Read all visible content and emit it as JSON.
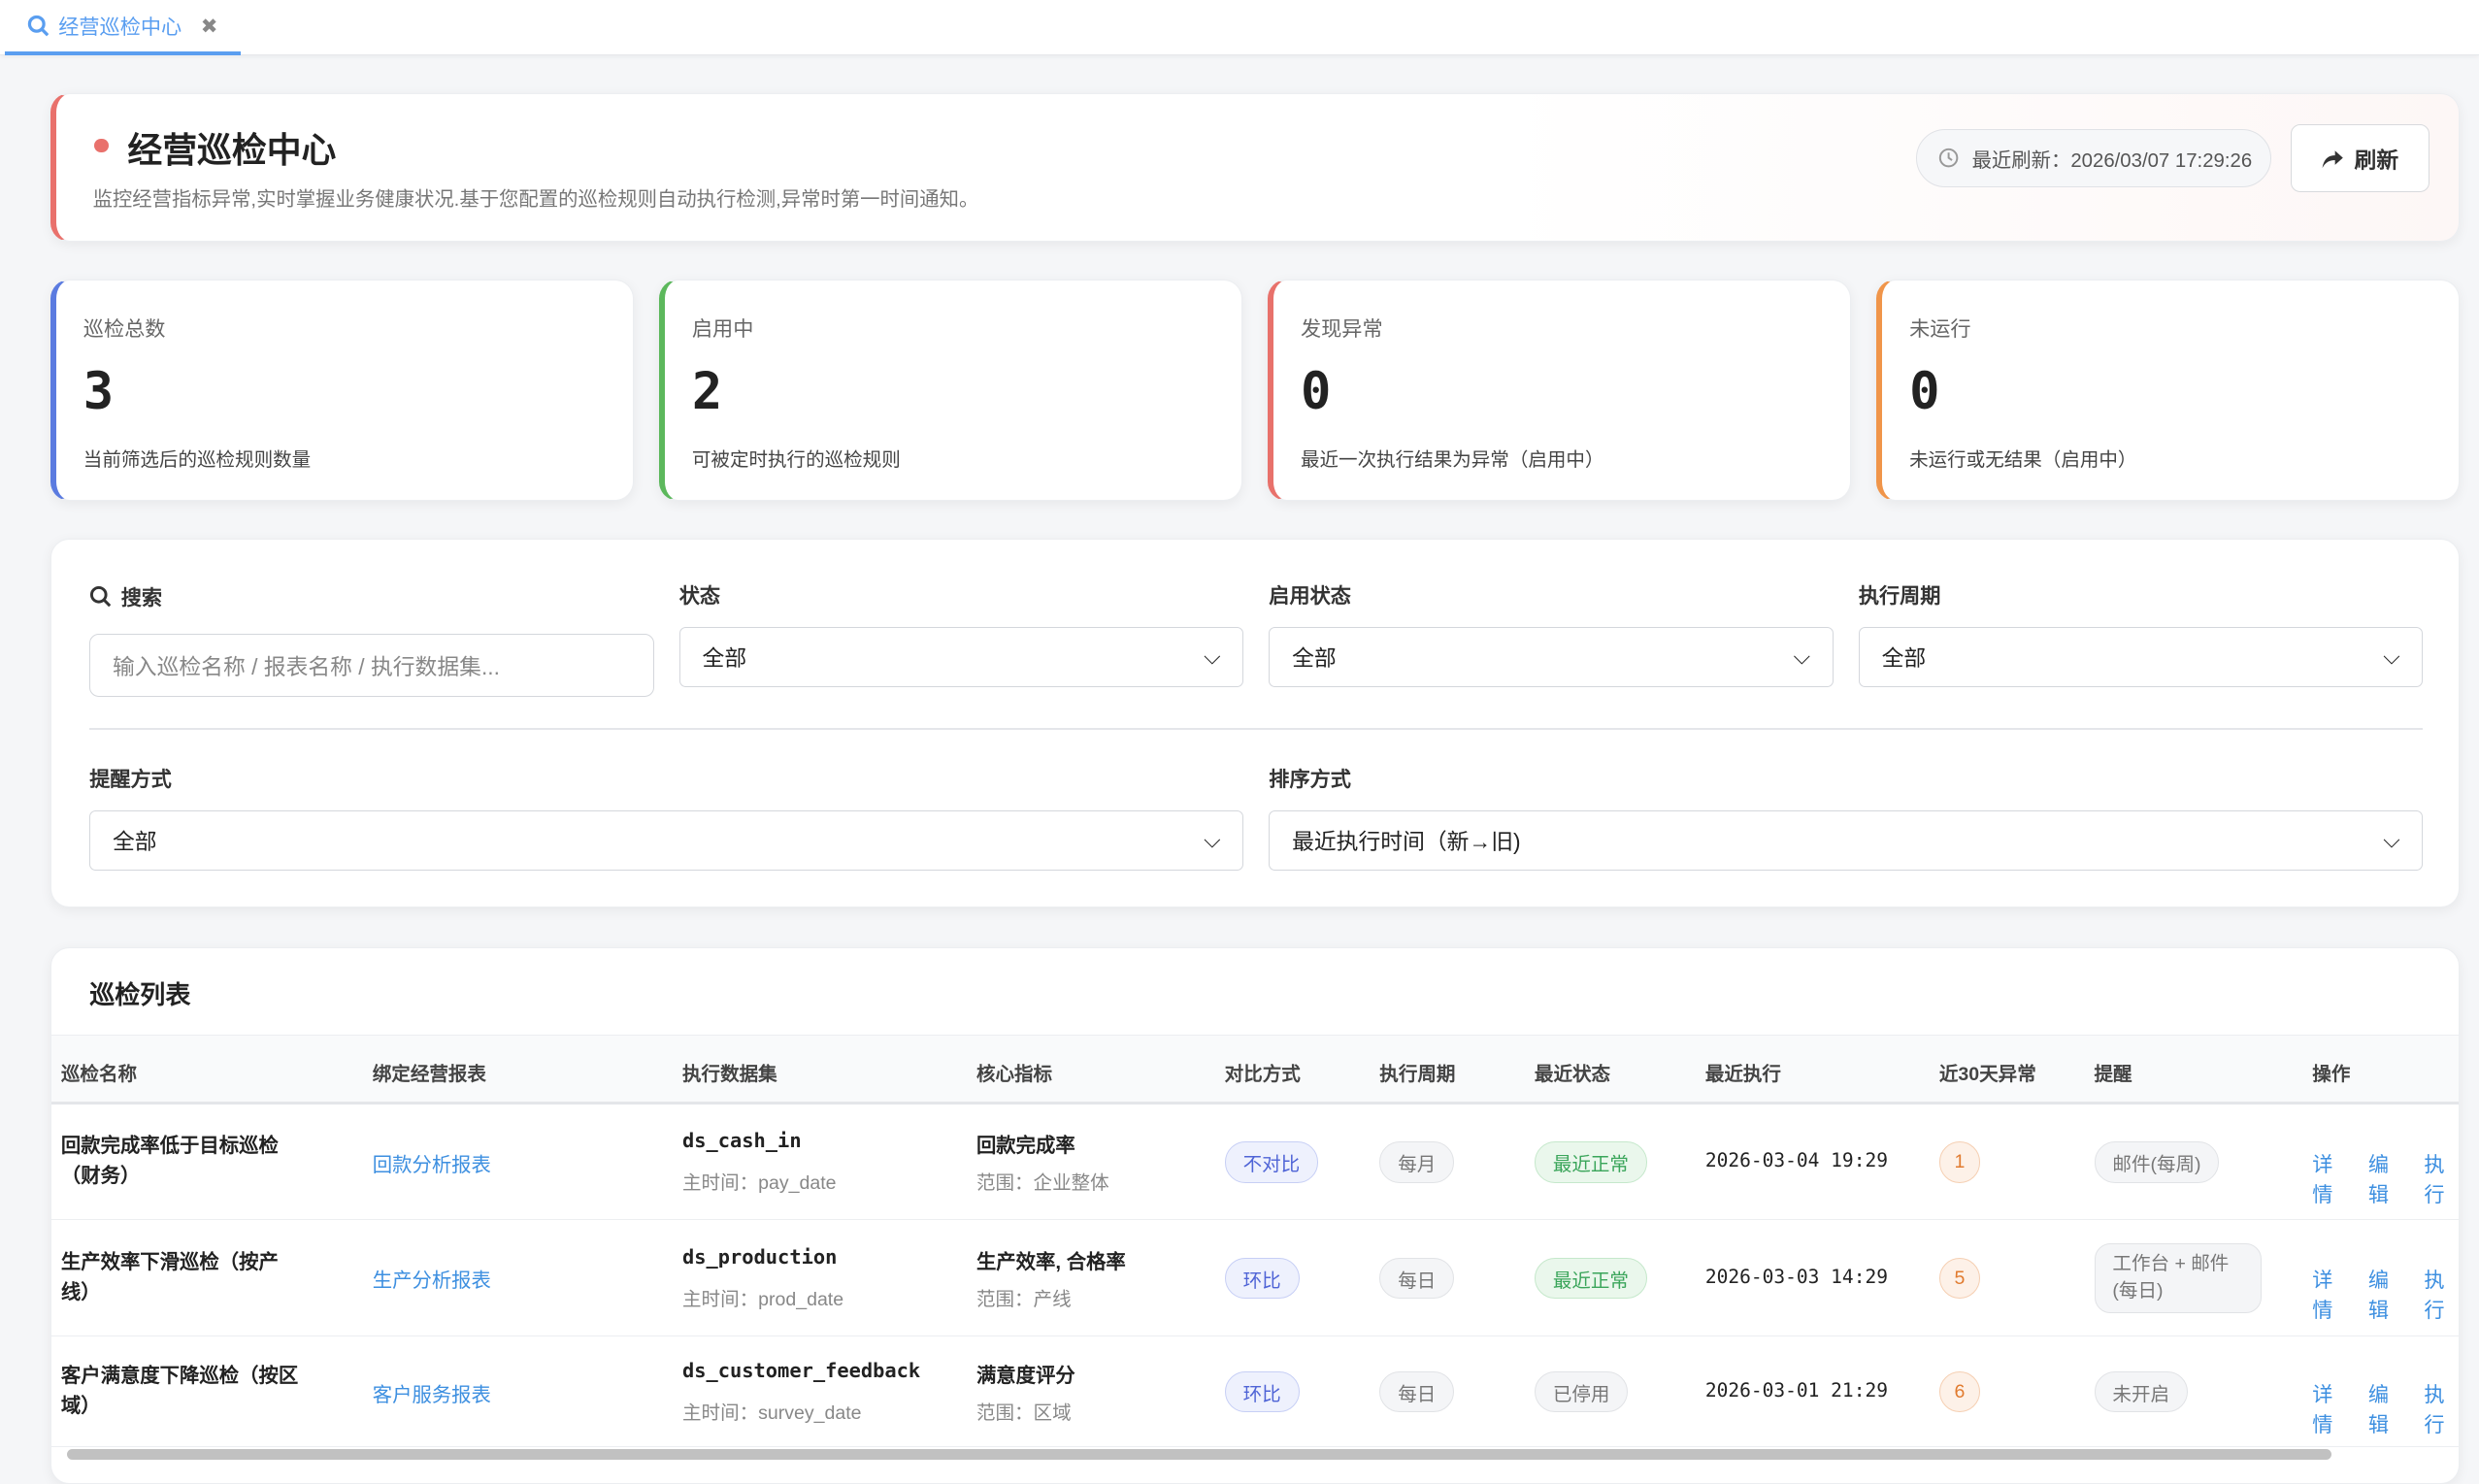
{
  "tab": {
    "label": "经营巡检中心",
    "icon": "search-icon"
  },
  "header": {
    "title": "经营巡检中心",
    "subtitle": "监控经营指标异常,实时掌握业务健康状况.基于您配置的巡检规则自动执行检测,异常时第一时间通知。",
    "last_refresh": "最近刷新：2026/03/07 17:29:26",
    "refresh_label": "刷新",
    "accent": "#e9716c"
  },
  "stats": [
    {
      "label": "巡检总数",
      "value": "3",
      "desc": "当前筛选后的巡检规则数量",
      "color": "#5b7be0"
    },
    {
      "label": "启用中",
      "value": "2",
      "desc": "可被定时执行的巡检规则",
      "color": "#5cb85c"
    },
    {
      "label": "发现异常",
      "value": "0",
      "desc": "最近一次执行结果为异常（启用中）",
      "color": "#e8716b"
    },
    {
      "label": "未运行",
      "value": "0",
      "desc": "未运行或无结果（启用中）",
      "color": "#f0954a"
    }
  ],
  "filters": {
    "search": {
      "label": "搜索",
      "placeholder": "输入巡检名称 / 报表名称 / 执行数据集..."
    },
    "status": {
      "label": "状态",
      "value": "全部"
    },
    "enabled": {
      "label": "启用状态",
      "value": "全部"
    },
    "period": {
      "label": "执行周期",
      "value": "全部"
    },
    "notify": {
      "label": "提醒方式",
      "value": "全部"
    },
    "sort": {
      "label": "排序方式",
      "value": "最近执行时间（新→旧)"
    }
  },
  "list": {
    "title": "巡检列表",
    "columns": [
      "巡检名称",
      "绑定经营报表",
      "执行数据集",
      "核心指标",
      "对比方式",
      "执行周期",
      "最近状态",
      "最近执行",
      "近30天异常",
      "提醒",
      "操作"
    ],
    "rows": [
      {
        "name": "回款完成率低于目标巡检（财务）",
        "report": "回款分析报表",
        "dataset": "ds_cash_in",
        "time_field": "主时间：pay_date",
        "metric": "回款完成率",
        "scope": "范围：企业整体",
        "compare": "不对比",
        "period": "每月",
        "status": "最近正常",
        "last_run": "2026-03-04 19:29",
        "anomalies": "1",
        "notify": "邮件(每周)"
      },
      {
        "name": "生产效率下滑巡检（按产线）",
        "report": "生产分析报表",
        "dataset": "ds_production",
        "time_field": "主时间：prod_date",
        "metric": "生产效率, 合格率",
        "scope": "范围：产线",
        "compare": "环比",
        "period": "每日",
        "status": "最近正常",
        "last_run": "2026-03-03 14:29",
        "anomalies": "5",
        "notify": "工作台 + 邮件(每日)"
      },
      {
        "name": "客户满意度下降巡检（按区域）",
        "report": "客户服务报表",
        "dataset": "ds_customer_feedback",
        "time_field": "主时间：survey_date",
        "metric": "满意度评分",
        "scope": "范围：区域",
        "compare": "环比",
        "period": "每日",
        "status": "已停用",
        "last_run": "2026-03-01 21:29",
        "anomalies": "6",
        "notify": "未开启"
      }
    ],
    "actions": [
      "详情",
      "编辑",
      "执行"
    ]
  }
}
